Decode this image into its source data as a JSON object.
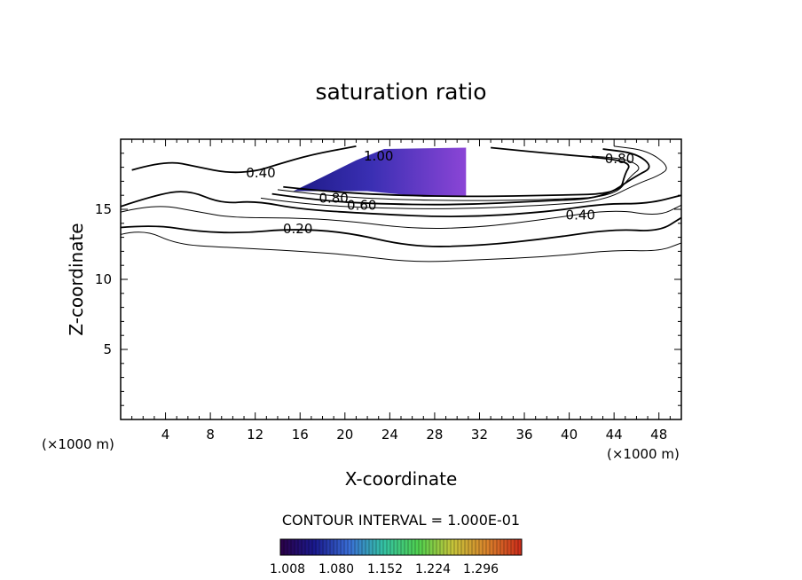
{
  "chart_data": {
    "type": "contour",
    "title": "saturation ratio",
    "xlabel": "X-coordinate",
    "ylabel": "Z-coordinate",
    "x_unit": "(×1000 m)",
    "z_unit": "(×1000 m)",
    "xlim": [
      0,
      50
    ],
    "ylim": [
      0,
      20
    ],
    "x_ticks": [
      4,
      8,
      12,
      16,
      20,
      24,
      28,
      32,
      36,
      40,
      44,
      48
    ],
    "y_ticks": [
      5,
      10,
      15
    ],
    "contour_interval_text": "CONTOUR INTERVAL = 1.000E-01",
    "contour_labels": [
      {
        "text": "1.00",
        "x": 23,
        "z": 18.8
      },
      {
        "text": "0.40",
        "x": 12.5,
        "z": 17.6
      },
      {
        "text": "0.80",
        "x": 19,
        "z": 15.8
      },
      {
        "text": "0.60",
        "x": 21.5,
        "z": 15.3
      },
      {
        "text": "0.20",
        "x": 15.8,
        "z": 13.6
      },
      {
        "text": "0.40",
        "x": 41,
        "z": 14.6
      },
      {
        "text": "0.80",
        "x": 44.5,
        "z": 18.6
      }
    ],
    "supersaturated_region": {
      "value_min": 1.008,
      "value_max": 1.296,
      "polygon": [
        [
          15.4,
          16.3
        ],
        [
          18,
          17.3
        ],
        [
          21,
          18.5
        ],
        [
          23.5,
          19.3
        ],
        [
          30.8,
          19.4
        ],
        [
          30.8,
          15.9
        ],
        [
          27,
          15.9
        ],
        [
          22,
          16.3
        ],
        [
          15.4,
          16.3
        ]
      ]
    },
    "contours": [
      {
        "level": 0.1,
        "points": [
          [
            0,
            13.2
          ],
          [
            2,
            13.6
          ],
          [
            5,
            12.5
          ],
          [
            9,
            12.3
          ],
          [
            14,
            12.1
          ],
          [
            20,
            11.8
          ],
          [
            26,
            11.2
          ],
          [
            32,
            11.4
          ],
          [
            38,
            11.6
          ],
          [
            44,
            12.1
          ],
          [
            48,
            12.0
          ],
          [
            50,
            12.6
          ]
        ]
      },
      {
        "level": 0.2,
        "points": [
          [
            0,
            13.7
          ],
          [
            3,
            13.9
          ],
          [
            7,
            13.4
          ],
          [
            11,
            13.3
          ],
          [
            15,
            13.6
          ],
          [
            20,
            13.4
          ],
          [
            26,
            12.3
          ],
          [
            32,
            12.4
          ],
          [
            38,
            12.9
          ],
          [
            44,
            13.6
          ],
          [
            48,
            13.4
          ],
          [
            50,
            14.4
          ]
        ]
      },
      {
        "level": 0.3,
        "points": [
          [
            0,
            14.8
          ],
          [
            3,
            15.4
          ],
          [
            7,
            14.8
          ],
          [
            10,
            14.4
          ],
          [
            15,
            14.4
          ],
          [
            20,
            14.2
          ],
          [
            26,
            13.6
          ],
          [
            32,
            13.7
          ],
          [
            38,
            14.3
          ],
          [
            44,
            15.0
          ],
          [
            48,
            14.5
          ],
          [
            50,
            15.3
          ]
        ]
      },
      {
        "level": 0.4,
        "points": [
          [
            0,
            15.2
          ],
          [
            3,
            16.0
          ],
          [
            6,
            16.4
          ],
          [
            9,
            15.4
          ],
          [
            12,
            15.6
          ],
          [
            16,
            15.0
          ],
          [
            22,
            14.7
          ],
          [
            30,
            14.4
          ],
          [
            38,
            14.8
          ],
          [
            43,
            15.4
          ],
          [
            47,
            15.4
          ],
          [
            50,
            16.0
          ]
        ]
      },
      {
        "level": 0.4,
        "points": [
          [
            1,
            17.8
          ],
          [
            4,
            18.5
          ],
          [
            7,
            18.0
          ],
          [
            9.5,
            17.6
          ],
          [
            12,
            17.7
          ],
          [
            14,
            18.2
          ],
          [
            17,
            18.9
          ],
          [
            21,
            19.5
          ]
        ]
      },
      {
        "level": 0.5,
        "points": [
          [
            12.5,
            15.8
          ],
          [
            16,
            15.4
          ],
          [
            22,
            15.1
          ],
          [
            30,
            15.0
          ],
          [
            38,
            15.3
          ],
          [
            43,
            15.6
          ],
          [
            46,
            16.8
          ],
          [
            48,
            17.4
          ],
          [
            49,
            18.0
          ],
          [
            47,
            19.2
          ],
          [
            44,
            19.5
          ]
        ]
      },
      {
        "level": 0.6,
        "points": [
          [
            13.5,
            16.1
          ],
          [
            17,
            15.7
          ],
          [
            22,
            15.4
          ],
          [
            30,
            15.3
          ],
          [
            38,
            15.6
          ],
          [
            43,
            15.8
          ],
          [
            46,
            17.4
          ],
          [
            47.5,
            18.0
          ],
          [
            46,
            19.0
          ],
          [
            43,
            19.3
          ]
        ]
      },
      {
        "level": 0.7,
        "points": [
          [
            14,
            16.4
          ],
          [
            18,
            16.0
          ],
          [
            24,
            15.7
          ],
          [
            32,
            15.6
          ],
          [
            38,
            15.7
          ],
          [
            44,
            15.9
          ],
          [
            45.5,
            17.4
          ],
          [
            46.5,
            18.0
          ],
          [
            45,
            18.6
          ],
          [
            42,
            18.8
          ]
        ]
      },
      {
        "level": 0.8,
        "points": [
          [
            14.5,
            16.6
          ],
          [
            18,
            16.3
          ],
          [
            24,
            16.0
          ],
          [
            32,
            15.9
          ],
          [
            38,
            16.0
          ],
          [
            44.5,
            16.1
          ],
          [
            45,
            17.6
          ],
          [
            45.5,
            18.2
          ],
          [
            44,
            18.6
          ],
          [
            38,
            19.0
          ],
          [
            33,
            19.4
          ]
        ]
      }
    ],
    "colorbar": {
      "tick_labels": [
        "1.008",
        "1.080",
        "1.152",
        "1.224",
        "1.296"
      ],
      "colors": [
        "#2b0047",
        "#1a1a8f",
        "#3a6fd6",
        "#34c2a3",
        "#4fd04f",
        "#c6c43a",
        "#d9822b",
        "#cc2a1a"
      ]
    }
  }
}
